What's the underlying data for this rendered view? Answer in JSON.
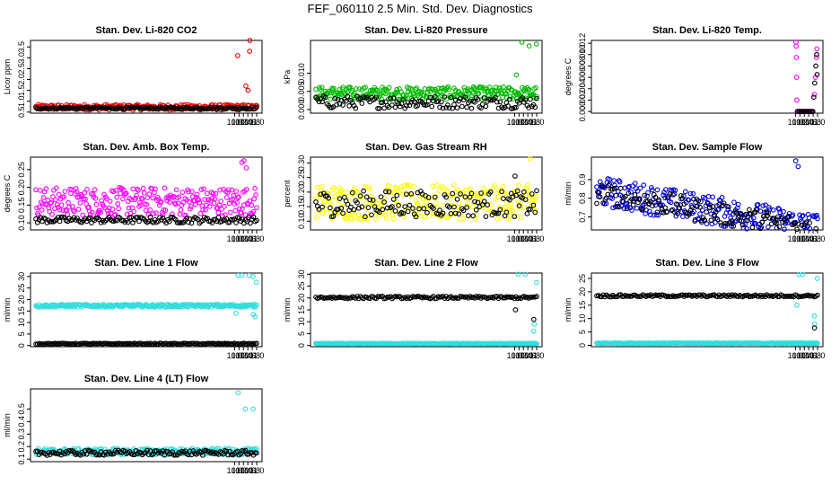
{
  "title": "FEF_060110  2.5 Min. Std. Dev. Diagnostics",
  "chart_data": [
    {
      "type": "scatter",
      "title": "Stan. Dev. Li-820 CO2",
      "ylabel": "Licor ppm",
      "xlim": [
        1.0,
        11.0
      ],
      "ylim": [
        0.45,
        3.8
      ],
      "xticks": [
        "10.0",
        "10.2",
        "10.4",
        "10.6",
        "10.8",
        "11.0"
      ],
      "yticks": [
        "0.5",
        "1.0",
        "1.5",
        "2.0",
        "2.5",
        "3.0",
        "3.5"
      ],
      "colors": {
        "primary": "#ee0000",
        "secondary": "#000000"
      },
      "series": [
        {
          "values": {
            "base": 0.72,
            "spread": 0.25,
            "trend": 0.0,
            "outliers": [
              [
                10.14,
                3.1
              ],
              [
                10.51,
                1.7
              ],
              [
                10.61,
                1.5
              ],
              [
                10.68,
                3.3
              ],
              [
                10.69,
                3.8
              ]
            ]
          }
        },
        {
          "values": {
            "base": 0.68,
            "spread": 0.1,
            "trend": 0.0,
            "outliers": []
          }
        }
      ]
    },
    {
      "type": "scatter",
      "title": "Stan. Dev. Li-820 Pressure",
      "ylabel": "kPa",
      "xlim": [
        1.0,
        11.0
      ],
      "ylim": [
        -0.001,
        0.019
      ],
      "xticks": [
        "10.0",
        "10.2",
        "10.4",
        "10.6",
        "10.8",
        "11.0"
      ],
      "yticks": [
        "0.000",
        "0.005",
        "0.010"
      ],
      "colors": {
        "primary": "#00bb00",
        "secondary": "#000000"
      },
      "series": [
        {
          "values": {
            "base": 0.0045,
            "spread": 0.0035,
            "trend": 0.0,
            "outliers": [
              [
                10.33,
                0.0185
              ],
              [
                10.66,
                0.0175
              ],
              [
                10.99,
                0.018
              ],
              [
                10.08,
                0.0095
              ]
            ]
          }
        },
        {
          "values": {
            "base": 0.002,
            "spread": 0.0035,
            "trend": 0.0,
            "outliers": []
          }
        }
      ]
    },
    {
      "type": "scatter",
      "title": "Stan. Dev. Li-820 Temp.",
      "ylabel": "degrees C",
      "xlim": [
        1.0,
        11.0
      ],
      "ylim": [
        -0.0003,
        0.0125
      ],
      "xticks": [
        "10.0",
        "10.2",
        "10.4",
        "10.6",
        "10.8",
        "11.0"
      ],
      "yticks": [
        "0.000",
        "0.002",
        "0.004",
        "0.006",
        "0.008",
        "0.010",
        "0.012"
      ],
      "colors": {
        "primary": "#ff00ff",
        "secondary": "#000000"
      },
      "series": [
        {
          "values": {
            "base": 0.0,
            "spread": 0.0,
            "trend": 0.0,
            "outliers": [
              [
                10.02,
                0.0122
              ],
              [
                10.03,
                0.0115
              ],
              [
                10.04,
                0.0095
              ],
              [
                10.05,
                0.006
              ],
              [
                10.06,
                0.002
              ],
              [
                10.85,
                0.003
              ],
              [
                10.9,
                0.006
              ],
              [
                10.95,
                0.0095
              ],
              [
                10.97,
                0.011
              ]
            ]
          }
        },
        {
          "values": {
            "base": 0.0,
            "spread": 0.0,
            "trend": 0.0,
            "outliers": [
              [
                10.83,
                0.0025
              ],
              [
                10.87,
                0.005
              ],
              [
                10.92,
                0.008
              ],
              [
                10.96,
                0.01
              ],
              [
                10.98,
                0.0065
              ]
            ]
          }
        }
      ]
    },
    {
      "type": "scatter",
      "title": "Stan. Dev. Amb. Box Temp.",
      "ylabel": "degrees C",
      "xlim": [
        1.0,
        11.0
      ],
      "ylim": [
        0.08,
        0.285
      ],
      "xticks": [
        "10.0",
        "10.2",
        "10.4",
        "10.6",
        "10.8",
        "11.0"
      ],
      "yticks": [
        "0.10",
        "0.15",
        "0.20",
        "0.25"
      ],
      "colors": {
        "primary": "#ff00ff",
        "secondary": "#000000"
      },
      "series": [
        {
          "values": {
            "base": 0.16,
            "spread": 0.08,
            "trend": 0.0,
            "outliers": [
              [
                10.42,
                0.275
              ],
              [
                10.33,
                0.27
              ],
              [
                10.53,
                0.255
              ]
            ]
          }
        },
        {
          "values": {
            "base": 0.108,
            "spread": 0.018,
            "trend": 0.0,
            "outliers": []
          }
        }
      ]
    },
    {
      "type": "scatter",
      "title": "Stan. Dev. Gas Stream RH",
      "ylabel": "percent",
      "xlim": [
        1.0,
        11.0
      ],
      "ylim": [
        0.07,
        0.32
      ],
      "xticks": [
        "10.0",
        "10.2",
        "10.4",
        "10.6",
        "10.8",
        "11.0"
      ],
      "yticks": [
        "0.10",
        "0.15",
        "0.20",
        "0.25",
        "0.30"
      ],
      "colors": {
        "primary": "#ffff00",
        "secondary": "#000000"
      },
      "series": [
        {
          "values": {
            "base": 0.165,
            "spread": 0.12,
            "trend": 0.0,
            "outliers": [
              [
                10.7,
                0.315
              ]
            ]
          }
        },
        {
          "values": {
            "base": 0.16,
            "spread": 0.09,
            "trend": 0.0,
            "outliers": [
              [
                10.02,
                0.255
              ]
            ]
          }
        }
      ]
    },
    {
      "type": "scatter",
      "title": "Stan. Dev. Sample Flow",
      "ylabel": "ml/min",
      "xlim": [
        1.0,
        11.0
      ],
      "ylim": [
        0.63,
        1.02
      ],
      "xticks": [
        "10.0",
        "10.2",
        "10.4",
        "10.6",
        "10.8",
        "11.0"
      ],
      "yticks": [
        "0.7",
        "0.8",
        "0.9"
      ],
      "colors": {
        "primary": "#0000dd",
        "secondary": "#000000"
      },
      "series": [
        {
          "values": {
            "base": 0.84,
            "spread": 0.16,
            "trend": -0.02,
            "outliers": [
              [
                10.01,
                1.0
              ],
              [
                10.12,
                0.97
              ]
            ]
          }
        },
        {
          "values": {
            "base": 0.83,
            "spread": 0.12,
            "trend": -0.02,
            "outliers": []
          }
        }
      ]
    },
    {
      "type": "scatter",
      "title": "Stan. Dev. Line 1 Flow",
      "ylabel": "ml/min",
      "xlim": [
        1.0,
        11.0
      ],
      "ylim": [
        -0.5,
        31.5
      ],
      "xticks": [
        "10.0",
        "10.2",
        "10.4",
        "10.6",
        "10.8",
        "11.0"
      ],
      "yticks": [
        "0",
        "5",
        "10",
        "15",
        "20",
        "25",
        "30"
      ],
      "colors": {
        "primary": "#33dddd",
        "secondary": "#000000"
      },
      "series": [
        {
          "values": {
            "base": 17.3,
            "spread": 1.2,
            "trend": 0.0,
            "outliers": [
              [
                10.16,
                30.5
              ],
              [
                10.33,
                30.5
              ],
              [
                10.66,
                30.5
              ],
              [
                10.84,
                30.0
              ],
              [
                10.99,
                27.5
              ],
              [
                10.06,
                14.0
              ],
              [
                10.85,
                13.5
              ],
              [
                10.93,
                12.5
              ]
            ]
          }
        },
        {
          "values": {
            "base": 0.8,
            "spread": 0.4,
            "trend": 0.0,
            "outliers": []
          }
        }
      ]
    },
    {
      "type": "scatter",
      "title": "Stan. Dev. Line 2 Flow",
      "ylabel": "ml/min",
      "xlim": [
        1.0,
        11.0
      ],
      "ylim": [
        -0.5,
        30.5
      ],
      "xticks": [
        "10.0",
        "10.2",
        "10.4",
        "10.6",
        "10.8",
        "11.0"
      ],
      "yticks": [
        "0",
        "5",
        "10",
        "15",
        "20",
        "25",
        "30"
      ],
      "colors": {
        "primary": "#33dddd",
        "secondary": "#000000"
      },
      "series": [
        {
          "values": {
            "base": 0.8,
            "spread": 0.3,
            "trend": 0.0,
            "outliers": [
              [
                10.16,
                30.0
              ],
              [
                10.49,
                30.0
              ],
              [
                10.99,
                26.5
              ],
              [
                10.87,
                6.0
              ],
              [
                10.89,
                9.0
              ]
            ]
          }
        },
        {
          "values": {
            "base": 20.2,
            "spread": 1.0,
            "trend": 0.0,
            "outliers": [
              [
                10.04,
                15.0
              ],
              [
                10.87,
                11.0
              ]
            ]
          }
        }
      ]
    },
    {
      "type": "scatter",
      "title": "Stan. Dev. Line 3 Flow",
      "ylabel": "ml/min",
      "xlim": [
        1.0,
        11.0
      ],
      "ylim": [
        -0.5,
        27.0
      ],
      "xticks": [
        "10.0",
        "10.2",
        "10.4",
        "10.6",
        "10.8",
        "11.0"
      ],
      "yticks": [
        "0",
        "5",
        "10",
        "15",
        "20",
        "25"
      ],
      "colors": {
        "primary": "#33dddd",
        "secondary": "#000000"
      },
      "series": [
        {
          "values": {
            "base": 0.8,
            "spread": 0.3,
            "trend": 0.0,
            "outliers": [
              [
                10.16,
                26.5
              ],
              [
                10.33,
                26.5
              ],
              [
                10.99,
                25.0
              ],
              [
                10.06,
                15.0
              ],
              [
                10.85,
                11.0
              ],
              [
                10.87,
                8.0
              ]
            ]
          }
        },
        {
          "values": {
            "base": 18.5,
            "spread": 0.8,
            "trend": 0.0,
            "outliers": [
              [
                10.86,
                6.5
              ]
            ]
          }
        }
      ]
    },
    {
      "type": "scatter",
      "title": "Stan. Dev. Line 4 (LT) Flow",
      "ylabel": "ml/min",
      "xlim": [
        1.0,
        11.0
      ],
      "ylim": [
        0.08,
        0.66
      ],
      "xticks": [
        "10.0",
        "10.2",
        "10.4",
        "10.6",
        "10.8",
        "11.0"
      ],
      "yticks": [
        "0.1",
        "0.2",
        "0.3",
        "0.4",
        "0.5"
      ],
      "colors": {
        "primary": "#33dddd",
        "secondary": "#000000"
      },
      "series": [
        {
          "values": {
            "base": 0.16,
            "spread": 0.05,
            "trend": 0.0,
            "outliers": [
              [
                10.16,
                0.63
              ],
              [
                10.49,
                0.5
              ],
              [
                10.84,
                0.5
              ]
            ]
          }
        },
        {
          "values": {
            "base": 0.15,
            "spread": 0.04,
            "trend": 0.0,
            "outliers": []
          }
        }
      ]
    }
  ]
}
